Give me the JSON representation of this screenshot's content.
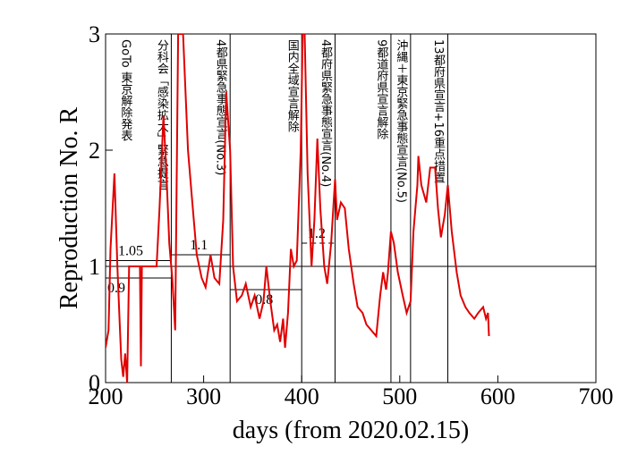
{
  "chart_data": {
    "type": "line",
    "xlabel": "days   (from 2020.02.15)",
    "ylabel": "Reproduction No.  R",
    "xlim": [
      200,
      700
    ],
    "ylim": [
      0,
      3
    ],
    "xticks": [
      200,
      300,
      400,
      500,
      600,
      700
    ],
    "yticks": [
      0,
      1,
      2,
      3
    ],
    "reference_line": 1,
    "series": [
      {
        "color": "#e00000",
        "x": [
          200,
          203,
          205,
          209,
          212,
          214,
          216,
          218,
          220,
          222,
          224,
          230,
          235,
          236,
          237,
          245,
          252,
          255,
          259,
          262,
          265,
          268,
          271,
          274,
          279,
          284,
          288,
          293,
          298,
          302,
          307,
          311,
          316,
          320,
          323,
          327,
          330,
          334,
          339,
          343,
          348,
          352,
          357,
          361,
          364,
          368,
          372,
          375,
          378,
          381,
          383,
          386,
          389,
          392,
          395,
          399,
          401,
          403,
          406,
          410,
          413,
          416,
          419,
          423,
          426,
          430,
          434,
          436,
          440,
          444,
          448,
          453,
          457,
          462,
          466,
          471,
          476,
          480,
          483,
          486,
          488,
          491,
          494,
          498,
          503,
          507,
          511,
          514,
          518,
          519,
          522,
          527,
          531,
          536,
          539,
          542,
          546,
          549,
          553,
          558,
          562,
          567,
          571,
          576,
          580,
          585,
          588,
          590,
          591
        ],
        "values": [
          0.3,
          0.45,
          1.15,
          1.8,
          1.0,
          0.6,
          0.2,
          0.05,
          0.25,
          0.0,
          1.0,
          1.0,
          1.0,
          0.14,
          1.0,
          1.0,
          1.0,
          1.5,
          2.3,
          1.8,
          1.2,
          0.9,
          0.45,
          3.0,
          3.0,
          2.0,
          1.6,
          1.1,
          0.9,
          0.82,
          1.1,
          0.9,
          0.85,
          1.4,
          2.5,
          2.0,
          1.0,
          0.7,
          0.75,
          0.85,
          0.65,
          0.75,
          0.55,
          0.7,
          1.0,
          0.7,
          0.45,
          0.5,
          0.35,
          0.55,
          0.3,
          0.6,
          1.15,
          1.0,
          1.05,
          2.0,
          3.0,
          3.0,
          1.8,
          1.0,
          1.4,
          2.1,
          1.5,
          1.0,
          0.85,
          1.2,
          1.75,
          1.4,
          1.55,
          1.5,
          1.15,
          0.85,
          0.65,
          0.6,
          0.5,
          0.45,
          0.4,
          0.75,
          0.95,
          0.8,
          0.95,
          1.3,
          1.2,
          0.95,
          0.75,
          0.6,
          0.7,
          1.3,
          1.7,
          1.95,
          1.7,
          1.55,
          1.85,
          1.85,
          1.5,
          1.25,
          1.45,
          1.7,
          1.3,
          0.95,
          0.75,
          0.65,
          0.6,
          0.55,
          0.6,
          0.65,
          0.55,
          0.6,
          0.4
        ]
      }
    ],
    "levels": [
      {
        "value": 0.9,
        "x": [
          200,
          267
        ]
      },
      {
        "value": 1.05,
        "x": [
          200,
          267
        ]
      },
      {
        "value": 1.1,
        "x": [
          267,
          327
        ]
      },
      {
        "value": 0.8,
        "x": [
          327,
          400
        ]
      },
      {
        "value": 1.2,
        "x": [
          400,
          434
        ]
      }
    ],
    "events": [
      {
        "x": 220,
        "label": "GoTo 東京解除発表"
      },
      {
        "x": 267,
        "label": "分科会「感染拡大」緊急提言"
      },
      {
        "x": 327,
        "label": "4都県緊急事態宣言(No.3)"
      },
      {
        "x": 400,
        "label": "国内全域宣言解除"
      },
      {
        "x": 434,
        "label": "4都府県緊急事態宣言(No.4)"
      },
      {
        "x": 491,
        "label": "9都道府県宣言解除"
      },
      {
        "x": 511,
        "label": "沖縄＋東京緊急事態宣言(No.5)"
      },
      {
        "x": 549,
        "label": "13都府県宣言+16重点措置"
      }
    ]
  }
}
